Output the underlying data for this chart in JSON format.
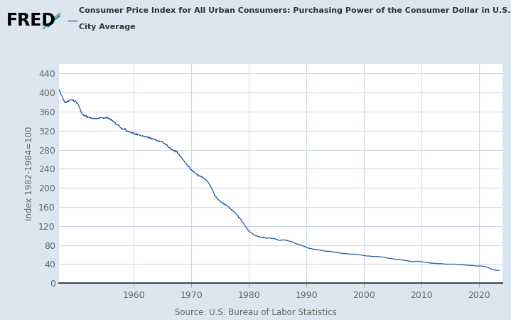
{
  "title_line1": "Consumer Price Index for All Urban Consumers: Purchasing Power of the Consumer Dollar in U.S.",
  "title_line2": "City Average",
  "ylabel": "Index 1982-1984=100",
  "source": "Source: U.S. Bureau of Labor Statistics",
  "line_color": "#2158a0",
  "background_color": "#dce6f1",
  "plot_bg_color": "#ffffff",
  "grid_color": "#d0d8e8",
  "ylim": [
    0,
    460
  ],
  "yticks": [
    0,
    40,
    80,
    120,
    160,
    200,
    240,
    280,
    320,
    360,
    400,
    440
  ],
  "xticks": [
    1960,
    1970,
    1980,
    1990,
    2000,
    2010,
    2020
  ],
  "tick_color": "#666666",
  "spine_color": "#222222",
  "fred_color": "#000000",
  "legend_line_color": "#2158a0"
}
